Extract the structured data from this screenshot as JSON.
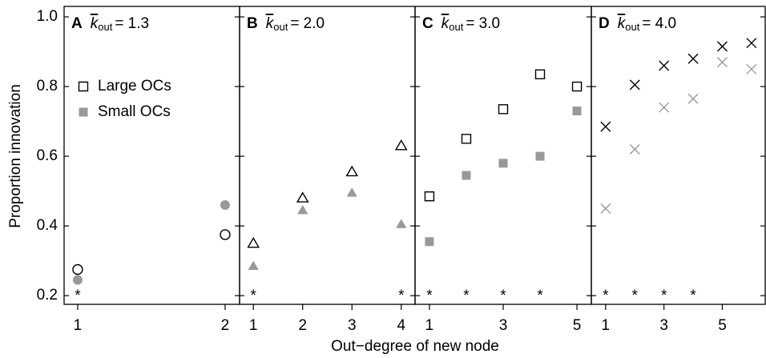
{
  "xlabel": "Out−degree of new node",
  "ylabel": "Proportion innovation",
  "ylim": [
    0.175,
    1.03
  ],
  "yticks": [
    0.2,
    0.4,
    0.6,
    0.8,
    {
      "value": 1,
      "label": "1.0"
    }
  ],
  "legend": [
    {
      "name": "Large OCs",
      "color": "#000000",
      "filled": false
    },
    {
      "name": "Small OCs",
      "color": "#999999",
      "filled": true
    }
  ],
  "significance_label": "*",
  "chart_data": [
    {
      "type": "scatter",
      "annotation": {
        "letter": "A",
        "symbol": "k",
        "subscript": "out",
        "equals": "= 1.3"
      },
      "xlim": [
        0.908,
        2.098
      ],
      "xticks": [
        1,
        2
      ],
      "x": [
        1,
        2
      ],
      "series": [
        {
          "color": "#000000",
          "marker": "circle",
          "filled": false,
          "values": [
            0.275,
            0.375
          ]
        },
        {
          "color": "#999999",
          "marker": "circle",
          "filled": true,
          "values": [
            0.245,
            0.46
          ]
        }
      ],
      "significant": [
        1
      ]
    },
    {
      "type": "scatter",
      "annotation": {
        "letter": "B",
        "symbol": "k",
        "subscript": "out",
        "equals": "= 2.0"
      },
      "xlim": [
        0.72,
        4.28
      ],
      "xticks": [
        1,
        2,
        3,
        4
      ],
      "x": [
        1,
        2,
        3,
        4
      ],
      "series": [
        {
          "color": "#000000",
          "marker": "triangle",
          "filled": false,
          "values": [
            0.35,
            0.48,
            0.555,
            0.63
          ]
        },
        {
          "color": "#999999",
          "marker": "triangle",
          "filled": true,
          "values": [
            0.285,
            0.445,
            0.495,
            0.405
          ]
        }
      ],
      "significant": [
        1,
        4
      ]
    },
    {
      "type": "scatter",
      "annotation": {
        "letter": "C",
        "symbol": "k",
        "subscript": "out",
        "equals": "= 3.0"
      },
      "xlim": [
        0.61,
        5.39
      ],
      "xticks": [
        1,
        3,
        5
      ],
      "x": [
        1,
        2,
        3,
        4,
        5
      ],
      "series": [
        {
          "color": "#000000",
          "marker": "square",
          "filled": false,
          "values": [
            0.485,
            0.65,
            0.735,
            0.835,
            0.8
          ]
        },
        {
          "color": "#999999",
          "marker": "square",
          "filled": true,
          "values": [
            0.355,
            0.545,
            0.58,
            0.6,
            0.73
          ]
        }
      ],
      "significant": [
        1,
        2,
        3,
        4
      ]
    },
    {
      "type": "scatter",
      "annotation": {
        "letter": "D",
        "symbol": "k",
        "subscript": "out",
        "equals": "= 4.0"
      },
      "xlim": [
        0.51,
        6.47
      ],
      "xticks": [
        1,
        3,
        5
      ],
      "x": [
        1,
        2,
        3,
        4,
        5,
        6
      ],
      "series": [
        {
          "color": "#000000",
          "marker": "cross",
          "filled": false,
          "values": [
            0.685,
            0.805,
            0.86,
            0.88,
            0.915,
            0.925
          ]
        },
        {
          "color": "#999999",
          "marker": "cross",
          "filled": false,
          "values": [
            0.45,
            0.62,
            0.74,
            0.765,
            0.87,
            0.85
          ]
        }
      ],
      "significant": [
        1,
        2,
        3,
        4
      ]
    }
  ]
}
